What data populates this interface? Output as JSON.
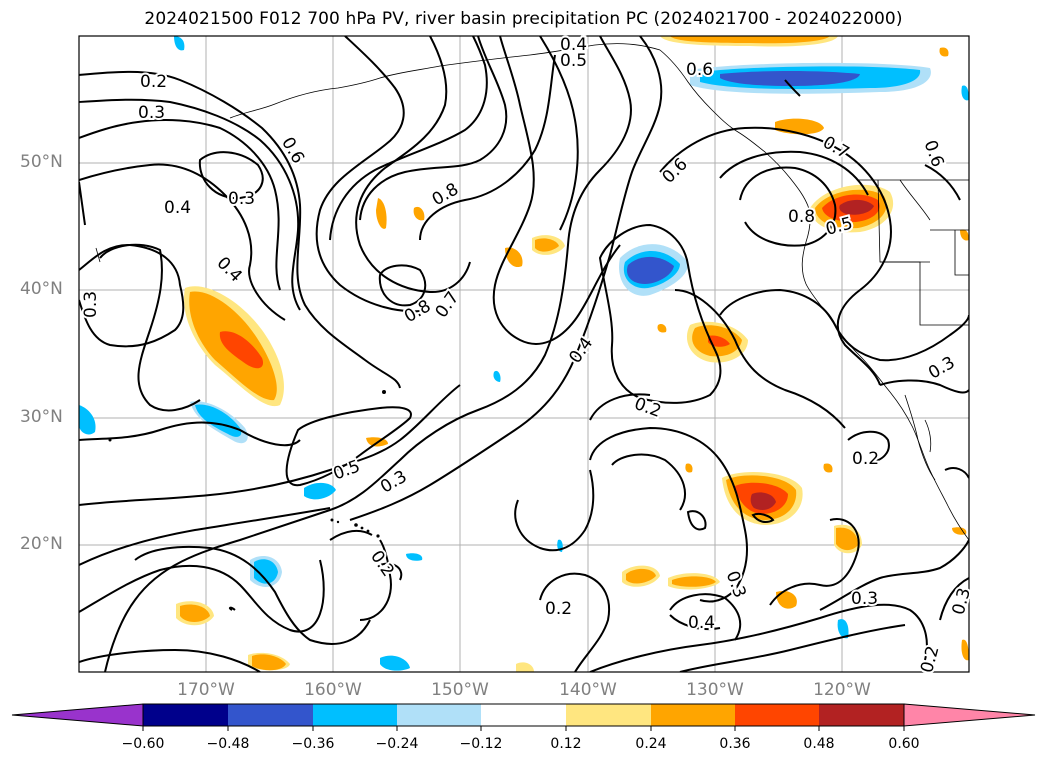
{
  "title": "2024021500 F012 700 hPa PV, river basin precipitation PC (2024021700 - 2024022000)",
  "lat_labels": [
    "50°N",
    "40°N",
    "30°N",
    "20°N"
  ],
  "lon_labels": [
    "170°W",
    "160°W",
    "150°W",
    "140°W",
    "130°W",
    "120°W"
  ],
  "contour_labels": [
    "0.2",
    "0.3",
    "0.4",
    "0.3",
    "0.6",
    "0.4",
    "0.3",
    "0.8",
    "0.8",
    "0.7",
    "0.4",
    "0.2",
    "0.5",
    "0.3",
    "0.2",
    "0.2",
    "0.4",
    "0.3",
    "0.3",
    "0.6",
    "0.6",
    "0.7",
    "0.8",
    "0.5",
    "0.4",
    "0.5",
    "0.6",
    "0.3",
    "0.2",
    "0.3",
    "0.2"
  ],
  "colorbar": {
    "ticks": [
      "−0.60",
      "−0.48",
      "−0.36",
      "−0.24",
      "−0.12",
      "0.12",
      "0.24",
      "0.36",
      "0.48",
      "0.60"
    ],
    "colors": [
      "#9933cc",
      "#00008b",
      "#3355cc",
      "#00bfff",
      "#b0e0f8",
      "#ffffff",
      "#ffe680",
      "#ffa500",
      "#ff4500",
      "#b22222",
      "#ff85a8"
    ]
  }
}
